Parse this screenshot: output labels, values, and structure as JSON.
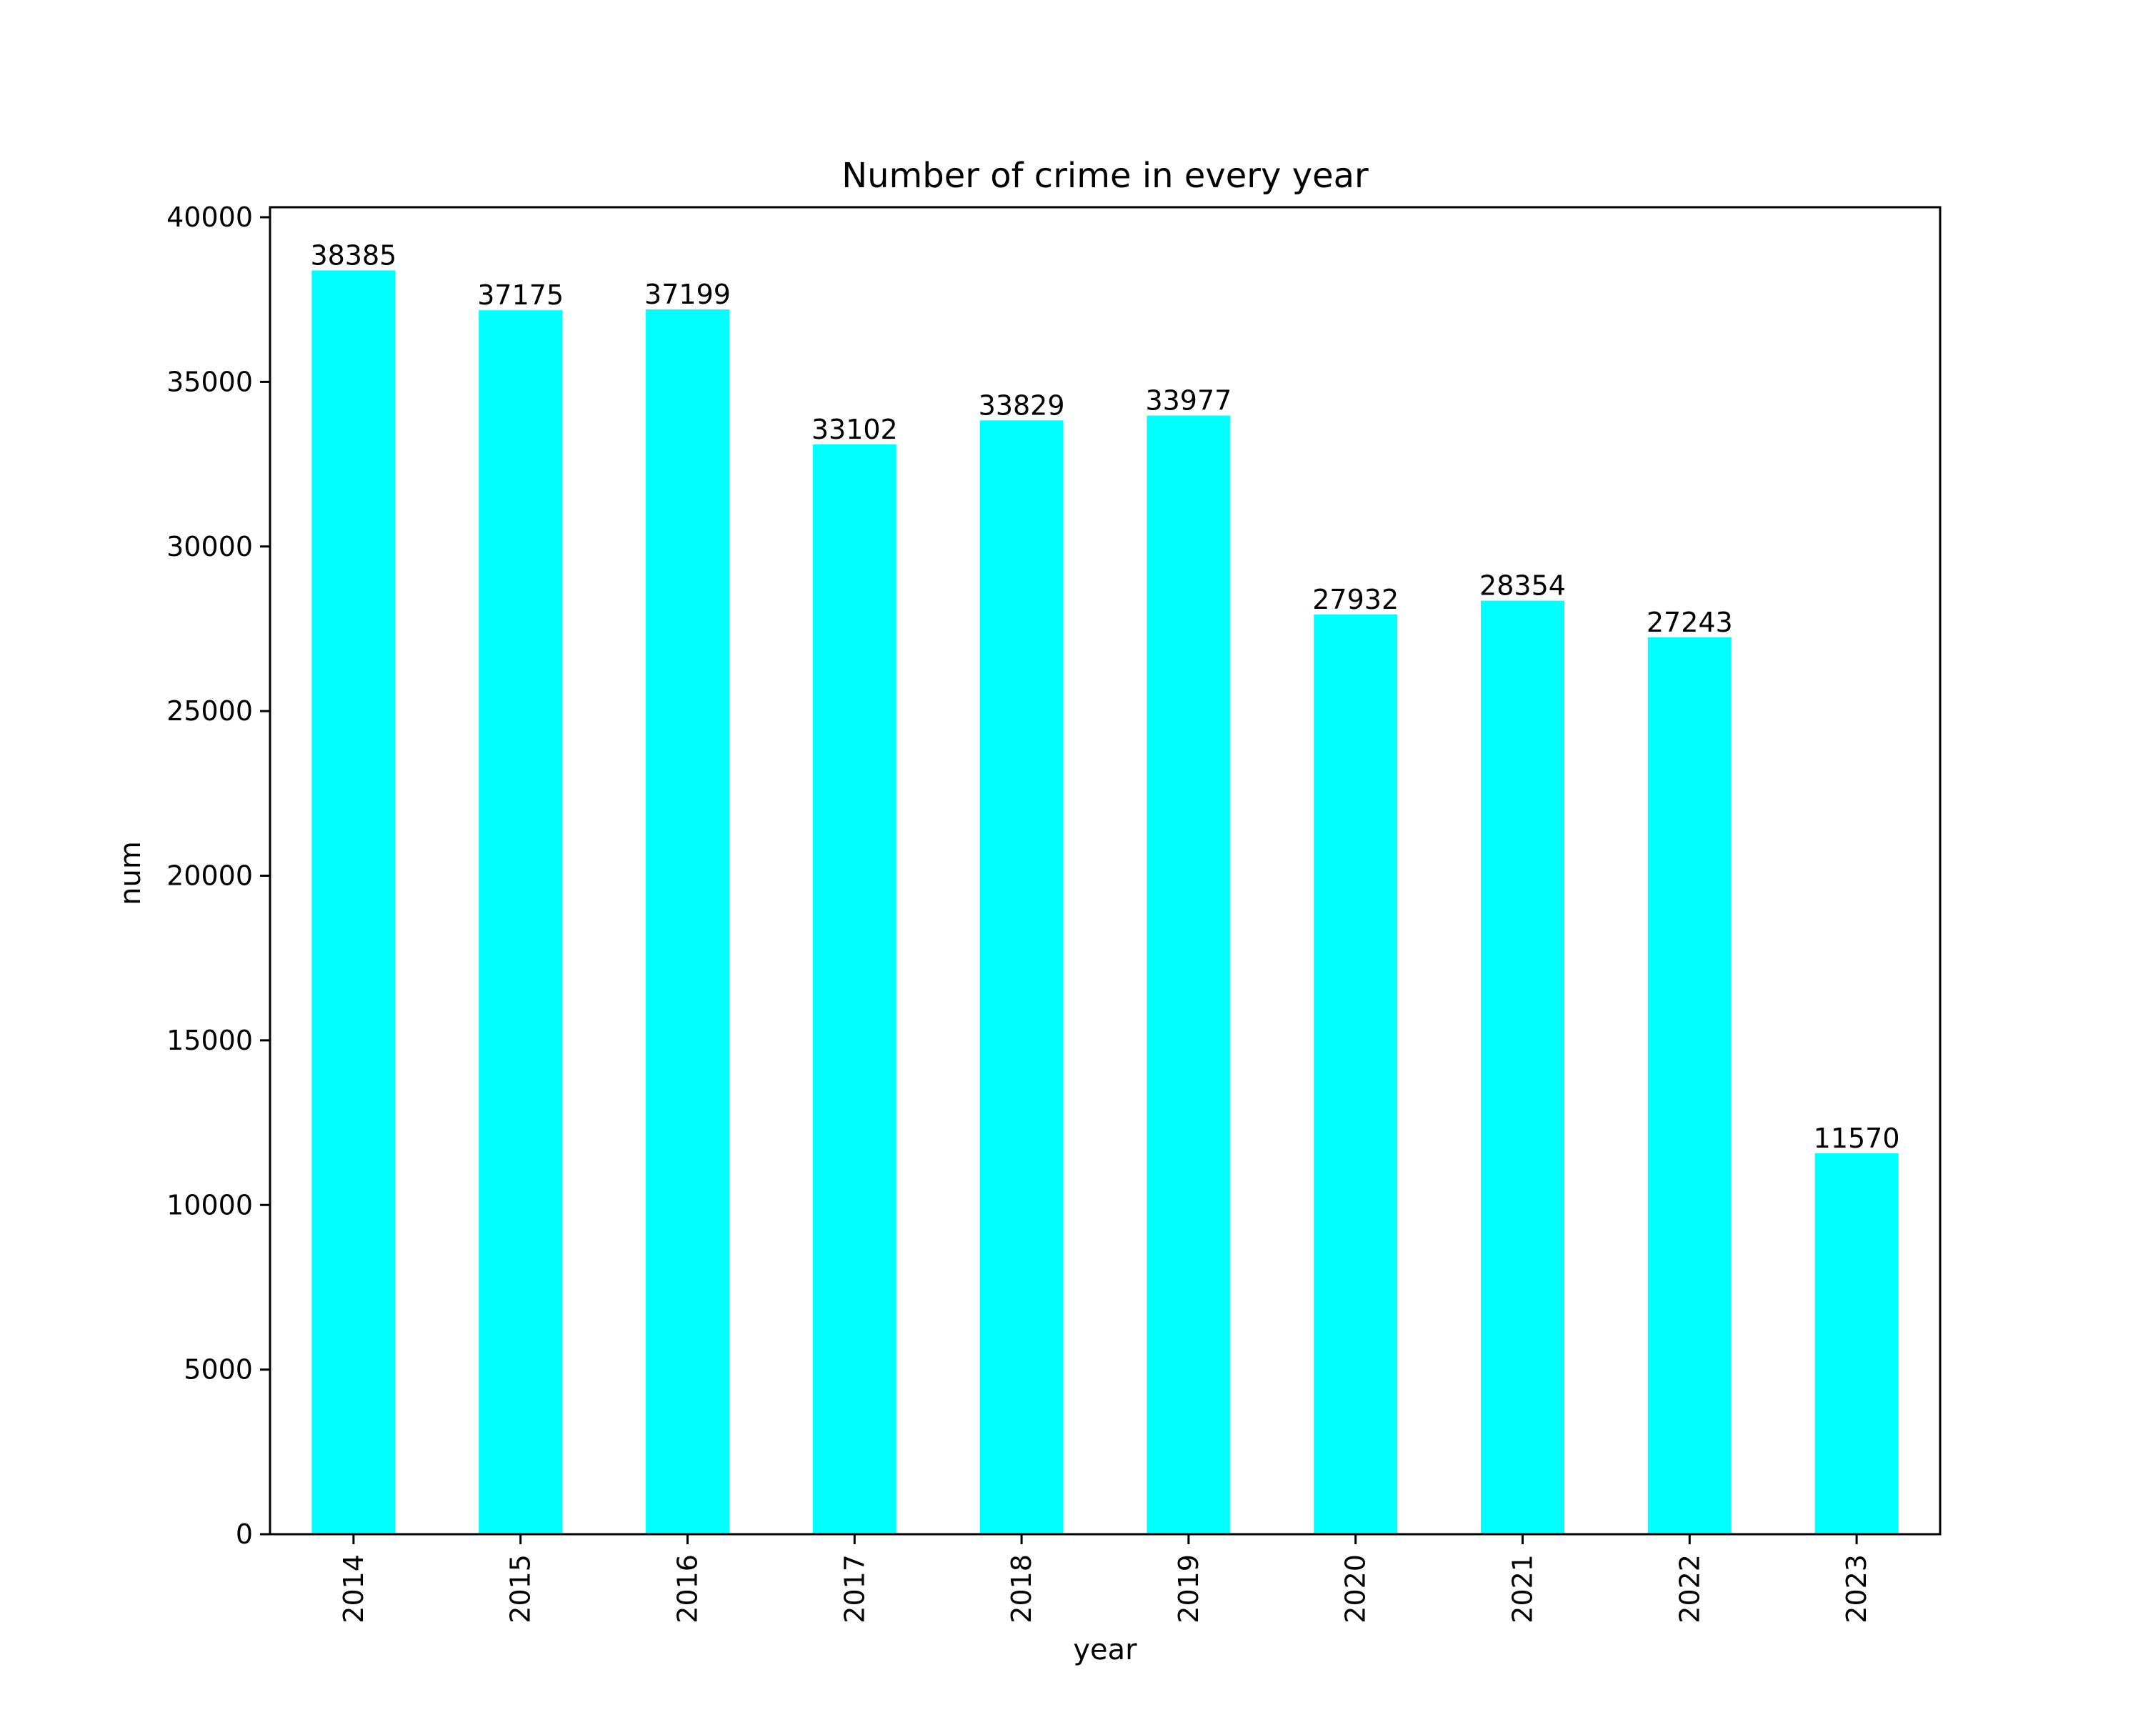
{
  "chart_data": {
    "type": "bar",
    "title": "Number of crime in every year",
    "xlabel": "year",
    "ylabel": "num",
    "categories": [
      "2014",
      "2015",
      "2016",
      "2017",
      "2018",
      "2019",
      "2020",
      "2021",
      "2022",
      "2023"
    ],
    "values": [
      38385,
      37175,
      37199,
      33102,
      33829,
      33977,
      27932,
      28354,
      27243,
      11570
    ],
    "data_labels": [
      "38385",
      "37175",
      "37199",
      "33102",
      "33829",
      "33977",
      "27932",
      "28354",
      "27243",
      "11570"
    ],
    "yticks": [
      0,
      5000,
      10000,
      15000,
      20000,
      25000,
      30000,
      35000,
      40000
    ],
    "ytick_labels": [
      "0",
      "5000",
      "10000",
      "15000",
      "20000",
      "25000",
      "30000",
      "35000",
      "40000"
    ],
    "ylim": [
      0,
      40304
    ],
    "bar_color": "#00ffff",
    "grid": false,
    "legend": "none",
    "xtick_rotation": "vertical"
  }
}
